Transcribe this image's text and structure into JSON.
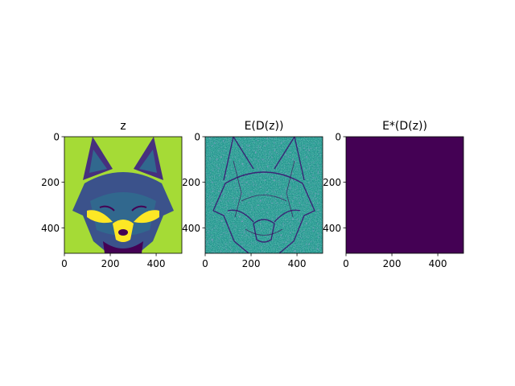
{
  "colors": {
    "background": "#ffffff",
    "axis": "#000000",
    "viridis_dark": "#440154",
    "viridis_light_green": "#a5db36",
    "viridis_yellow": "#fde725",
    "viridis_blue": "#3b528b",
    "viridis_teal": "#21918c"
  },
  "chart_data": [
    {
      "type": "heatmap",
      "title": "z",
      "image_desc": "fox-face",
      "xlim": [
        0,
        512
      ],
      "ylim": [
        512,
        0
      ],
      "xticks": [
        0,
        200,
        400
      ],
      "yticks": [
        0,
        200,
        400
      ],
      "xtick_labels": [
        "0",
        "200",
        "400"
      ],
      "ytick_labels": [
        "0",
        "200",
        "400"
      ],
      "colormap": "viridis"
    },
    {
      "type": "heatmap",
      "title": "E(D(z))",
      "image_desc": "noisy-edges",
      "xlim": [
        0,
        512
      ],
      "ylim": [
        512,
        0
      ],
      "xticks": [
        0,
        200,
        400
      ],
      "yticks": [
        0,
        200,
        400
      ],
      "xtick_labels": [
        "0",
        "200",
        "400"
      ],
      "ytick_labels": [
        "0",
        "200",
        "400"
      ],
      "colormap": "viridis"
    },
    {
      "type": "heatmap",
      "title": "E*(D(z))",
      "image_desc": "uniform",
      "xlim": [
        0,
        512
      ],
      "ylim": [
        512,
        0
      ],
      "xticks": [
        0,
        200,
        400
      ],
      "yticks": [
        0,
        200,
        400
      ],
      "xtick_labels": [
        "0",
        "200",
        "400"
      ],
      "ytick_labels": [
        "0",
        "200",
        "400"
      ],
      "colormap": "viridis"
    }
  ]
}
